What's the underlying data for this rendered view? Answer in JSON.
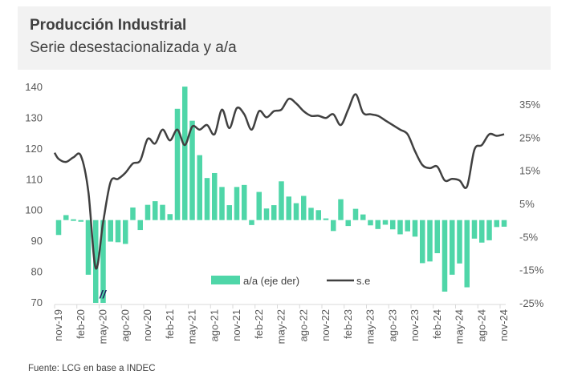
{
  "header": {
    "title": "Producción Industrial",
    "subtitle": "Serie desestacionalizada y a/a"
  },
  "source": "Fuente: LCG en base a INDEC",
  "colors": {
    "bar": "#4fd6a8",
    "line": "#404040",
    "axis": "#d9d9d9",
    "header_bg": "#f2f2f2"
  },
  "chart_data": {
    "type": "bar+line",
    "title": "Producción Industrial",
    "subtitle": "Serie desestacionalizada y a/a",
    "xlabel": "",
    "ylabel_left": "",
    "ylabel_right": "",
    "grid": false,
    "legend_position": "bottom-center-inside",
    "axis_break_marker": "//",
    "left_axis": {
      "min": 70,
      "max": 140,
      "ticks": [
        "70",
        "80",
        "90",
        "100",
        "110",
        "120",
        "130",
        "140"
      ],
      "tick_values": [
        70,
        80,
        90,
        100,
        110,
        120,
        130,
        140
      ]
    },
    "right_axis": {
      "min": -25,
      "max": 35,
      "ticks": [
        "-25%",
        "-15%",
        "-5%",
        "5%",
        "15%",
        "25%",
        "35%"
      ],
      "tick_values": [
        -25,
        -15,
        -5,
        5,
        15,
        25,
        35
      ]
    },
    "x_tick_labels": [
      "nov-19",
      "feb-20",
      "may-20",
      "ago-20",
      "nov-20",
      "feb-21",
      "may-21",
      "ago-21",
      "nov-21",
      "feb-22",
      "may-22",
      "ago-22",
      "nov-22",
      "feb-23",
      "may-23",
      "ago-23",
      "nov-23",
      "feb-24",
      "may-24",
      "ago-24",
      "nov-24"
    ],
    "x": [
      "nov-19",
      "dic-19",
      "ene-20",
      "feb-20",
      "mar-20",
      "abr-20",
      "may-20",
      "jun-20",
      "jul-20",
      "ago-20",
      "sep-20",
      "oct-20",
      "nov-20",
      "dic-20",
      "ene-21",
      "feb-21",
      "mar-21",
      "abr-21",
      "may-21",
      "jun-21",
      "jul-21",
      "ago-21",
      "sep-21",
      "oct-21",
      "nov-21",
      "dic-21",
      "ene-22",
      "feb-22",
      "mar-22",
      "abr-22",
      "may-22",
      "jun-22",
      "jul-22",
      "ago-22",
      "sep-22",
      "oct-22",
      "nov-22",
      "dic-22",
      "ene-23",
      "feb-23",
      "mar-23",
      "abr-23",
      "may-23",
      "jun-23",
      "jul-23",
      "ago-23",
      "sep-23",
      "oct-23",
      "nov-23",
      "dic-23",
      "ene-24",
      "feb-24",
      "mar-24",
      "abr-24",
      "may-24",
      "jun-24",
      "jul-24",
      "ago-24",
      "sep-24",
      "oct-24",
      "nov-24"
    ],
    "series": [
      {
        "name": "a/a (eje der)",
        "type": "bar",
        "axis": "right",
        "unit": "%",
        "values": [
          -4.5,
          1.5,
          0.3,
          -0.5,
          -16.5,
          -25,
          -25,
          -6.5,
          -6.7,
          -7.2,
          3.8,
          -3.0,
          4.6,
          5.7,
          4.6,
          1.8,
          33.6,
          40.3,
          30.0,
          19.6,
          12.7,
          14.2,
          10.0,
          4.5,
          10.0,
          10.6,
          -1.5,
          8.5,
          3.5,
          4.5,
          11.7,
          7.1,
          5.1,
          7.3,
          3.7,
          3.0,
          0.5,
          -3.3,
          6.3,
          -1.8,
          3.4,
          1.7,
          -1.6,
          -2.7,
          -1.4,
          -2.8,
          -4.3,
          -3.4,
          -5.0,
          -13.0,
          -12.5,
          -10.0,
          -21.6,
          -16.5,
          -13.1,
          -20.3,
          -5.6,
          -6.8,
          -6.1,
          -2.1,
          -2.0
        ]
      },
      {
        "name": "s.e",
        "type": "line",
        "axis": "left",
        "values": [
          116.5,
          115.5,
          117,
          117.5,
          106,
          81,
          96,
          109,
          110,
          112,
          115,
          116,
          123,
          121.5,
          126,
          122.5,
          126,
          121,
          127,
          126,
          127.5,
          124.5,
          132.5,
          126.5,
          133,
          131,
          126,
          132,
          130,
          132,
          132.5,
          136,
          134.5,
          132,
          130.5,
          130.5,
          129.8,
          131,
          127.5,
          132.5,
          137.5,
          131.5,
          131,
          130.5,
          129,
          127.5,
          126,
          124.5,
          119,
          114.5,
          113.5,
          114,
          109.5,
          110,
          109.5,
          107.5,
          119.5,
          121,
          124.5,
          124,
          124.5
        ]
      }
    ]
  }
}
